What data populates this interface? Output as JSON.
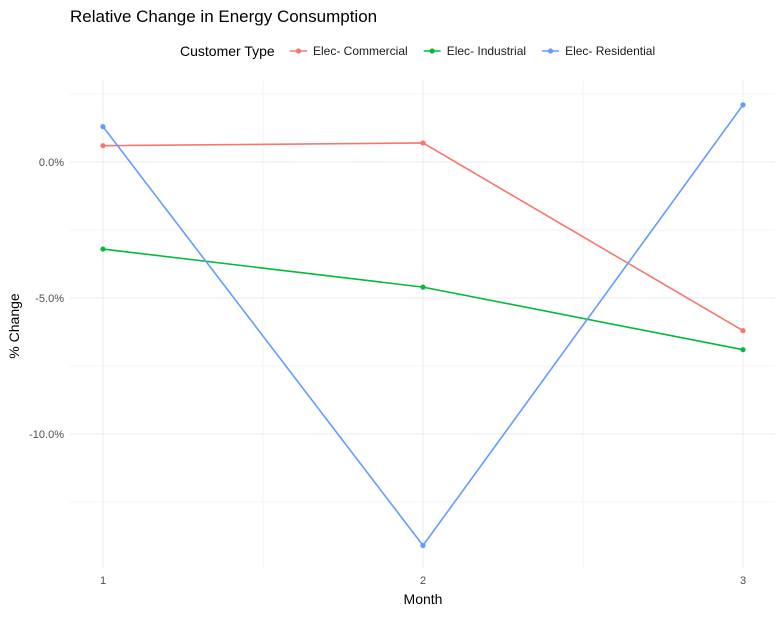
{
  "chart_data": {
    "type": "line",
    "title": "Relative Change in Energy Consumption",
    "xlabel": "Month",
    "ylabel": "% Change",
    "x": [
      1,
      2,
      3
    ],
    "x_tick_labels": [
      "1",
      "2",
      "3"
    ],
    "xlim": [
      0.92,
      3.1
    ],
    "ylim": [
      -15,
      2.5
    ],
    "y_ticks": [
      0,
      -5,
      -10
    ],
    "y_tick_labels": [
      "0.0%",
      "-5.0%",
      "-10.0%"
    ],
    "y_minor_ticks": [
      2.5,
      -2.5,
      -7.5,
      -12.5
    ],
    "grid": true,
    "legend": {
      "title": "Customer Type",
      "placement": "top"
    },
    "series": [
      {
        "name": "Elec- Commercial",
        "color": "#F8766D",
        "values": [
          0.6,
          0.7,
          -6.2
        ]
      },
      {
        "name": "Elec- Industrial",
        "color": "#00BA38",
        "values": [
          -3.2,
          -4.6,
          -6.9
        ]
      },
      {
        "name": "Elec- Residential",
        "color": "#619CFF",
        "values": [
          1.3,
          -14.1,
          2.1
        ]
      }
    ]
  }
}
